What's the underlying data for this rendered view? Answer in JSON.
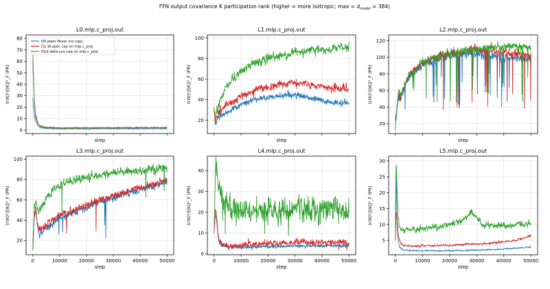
{
  "figure": {
    "suptitle_prefix": "FFN output covariance K participation rank (higher = more isotropic; max = ",
    "suptitle_dmodel": "d",
    "suptitle_sub": "model",
    "suptitle_suffix": " = 384)",
    "xlabel": "step",
    "ylabel": "tr(K)²/||K||²_F (PR)"
  },
  "legend": {
    "placement": "upper-right",
    "entries": [
      "D0 plain Muon (no cap)",
      "D1 W-spec cap on mlp.c_proj",
      "D1d data-cov cap on mlp.c_proj"
    ]
  },
  "colors": {
    "D0": "#1f77b4",
    "D1": "#d62728",
    "D1d": "#2ca02c",
    "grid": "#dddddd",
    "axis": "#000000"
  },
  "chart_data": [
    {
      "type": "line",
      "title": "L0.mlp.c_proj.out",
      "xlabel": "step",
      "ylabel": "tr(K)²/||K||²_F (PR)",
      "xlim": [
        -2500,
        52500
      ],
      "ylim": [
        -3,
        83
      ],
      "xticks": [],
      "yticks": [
        0,
        10,
        20,
        30,
        40,
        50,
        60,
        70,
        80
      ],
      "grid": true,
      "legend": "upper-right",
      "x": [
        0,
        500,
        1000,
        2000,
        3000,
        5000,
        10000,
        15000,
        20000,
        25000,
        30000,
        35000,
        40000,
        45000,
        50000
      ],
      "series": [
        {
          "name": "D0 plain Muon (no cap)",
          "key": "D0",
          "values": [
            28,
            14,
            8,
            3.5,
            2,
            1.5,
            1.2,
            1.2,
            1.2,
            1.3,
            1.3,
            1.3,
            1.3,
            1.3,
            1.4
          ]
        },
        {
          "name": "D1 W-spec cap on mlp.c_proj",
          "key": "D1",
          "values": [
            62,
            28,
            12,
            5,
            3,
            2.2,
            1.8,
            1.8,
            1.8,
            1.9,
            1.9,
            1.9,
            2.0,
            2.0,
            2.0
          ]
        },
        {
          "name": "D1d data-cov cap on mlp.c_proj",
          "key": "D1d",
          "values": [
            68,
            30,
            14,
            5.5,
            3.5,
            2.5,
            2.0,
            2.0,
            2.0,
            2.1,
            2.1,
            2.2,
            2.2,
            2.3,
            2.3
          ]
        }
      ]
    },
    {
      "type": "line",
      "title": "L1.mlp.c_proj.out",
      "xlabel": "step",
      "ylabel": "tr(K)²/||K||²_F (PR)",
      "xlim": [
        -2500,
        52500
      ],
      "ylim": [
        7,
        103
      ],
      "xticks": [],
      "yticks": [
        20,
        40,
        60,
        80,
        100
      ],
      "grid": true,
      "x": [
        0,
        500,
        1000,
        2000,
        3000,
        5000,
        8000,
        10000,
        15000,
        20000,
        25000,
        30000,
        35000,
        40000,
        45000,
        50000
      ],
      "series": [
        {
          "name": "D0 plain Muon (no cap)",
          "key": "D0",
          "values": [
            30,
            14,
            20,
            24,
            25,
            28,
            32,
            35,
            40,
            42,
            44,
            45,
            42,
            39,
            37,
            36
          ]
        },
        {
          "name": "D1 W-spec cap on mlp.c_proj",
          "key": "D1",
          "values": [
            32,
            16,
            24,
            28,
            30,
            35,
            40,
            44,
            49,
            52,
            55,
            57,
            55,
            53,
            51,
            50
          ]
        },
        {
          "name": "D1d data-cov cap on mlp.c_proj",
          "key": "D1d",
          "values": [
            35,
            20,
            30,
            38,
            45,
            55,
            63,
            68,
            75,
            80,
            83,
            86,
            88,
            88,
            90,
            92
          ]
        }
      ]
    },
    {
      "type": "line",
      "title": "L2.mlp.c_proj.out",
      "xlabel": "step",
      "ylabel": "tr(K)²/||K||²_F (PR)",
      "xlim": [
        -2500,
        52500
      ],
      "ylim": [
        8,
        127
      ],
      "xticks": [],
      "yticks": [
        20,
        40,
        60,
        80,
        100,
        120
      ],
      "grid": true,
      "x": [
        0,
        500,
        1000,
        1500,
        2000,
        3000,
        5000,
        8000,
        10000,
        15000,
        20000,
        25000,
        30000,
        35000,
        40000,
        45000,
        50000
      ],
      "series": [
        {
          "name": "D0 plain Muon (no cap)",
          "key": "D0",
          "values": [
            20,
            35,
            50,
            55,
            48,
            60,
            75,
            85,
            90,
            97,
            101,
            104,
            105,
            102,
            100,
            98,
            96
          ]
        },
        {
          "name": "D1 W-spec cap on mlp.c_proj",
          "key": "D1",
          "values": [
            22,
            38,
            52,
            57,
            50,
            62,
            77,
            88,
            93,
            100,
            104,
            107,
            109,
            108,
            106,
            104,
            102
          ]
        },
        {
          "name": "D1d data-cov cap on mlp.c_proj",
          "key": "D1d",
          "values": [
            15,
            40,
            55,
            60,
            52,
            64,
            78,
            88,
            93,
            100,
            105,
            108,
            110,
            112,
            113,
            113,
            112
          ]
        }
      ]
    },
    {
      "type": "line",
      "title": "L3.mlp.c_proj.out",
      "xlabel": "step",
      "ylabel": "tr(K)²/||K||²_F (PR)",
      "xlim": [
        -2500,
        52500
      ],
      "ylim": [
        6,
        103
      ],
      "xticks": [
        0,
        10000,
        20000,
        30000,
        40000,
        50000
      ],
      "yticks": [
        20,
        40,
        60,
        80,
        100
      ],
      "grid": true,
      "x": [
        0,
        500,
        1000,
        2000,
        3000,
        5000,
        8000,
        10000,
        15000,
        20000,
        25000,
        30000,
        35000,
        40000,
        45000,
        50000
      ],
      "series": [
        {
          "name": "D0 plain Muon (no cap)",
          "key": "D0",
          "values": [
            10,
            40,
            50,
            28,
            27,
            32,
            38,
            42,
            48,
            52,
            58,
            62,
            66,
            70,
            74,
            76
          ]
        },
        {
          "name": "D1 W-spec cap on mlp.c_proj",
          "key": "D1",
          "values": [
            12,
            45,
            55,
            32,
            31,
            36,
            42,
            45,
            50,
            55,
            60,
            64,
            68,
            72,
            76,
            79
          ]
        },
        {
          "name": "D1d data-cov cap on mlp.c_proj",
          "key": "D1d",
          "values": [
            12,
            50,
            60,
            48,
            50,
            62,
            70,
            74,
            80,
            82,
            85,
            87,
            88,
            89,
            90,
            91
          ]
        }
      ]
    },
    {
      "type": "line",
      "title": "L4.mlp.c_proj.out",
      "xlabel": "step",
      "ylabel": "tr(K)²/||K||²_F (PR)",
      "xlim": [
        -2500,
        52500
      ],
      "ylim": [
        -0.5,
        47
      ],
      "xticks": [
        0,
        10000,
        20000,
        30000,
        40000,
        50000
      ],
      "yticks": [
        0,
        10,
        20,
        30,
        40
      ],
      "grid": true,
      "x": [
        0,
        500,
        1000,
        1500,
        2000,
        3000,
        5000,
        8000,
        10000,
        15000,
        20000,
        25000,
        30000,
        35000,
        40000,
        45000,
        50000
      ],
      "series": [
        {
          "name": "D0 plain Muon (no cap)",
          "key": "D0",
          "values": [
            10,
            20,
            15,
            8,
            5,
            3.5,
            3,
            3,
            3,
            3.2,
            3.5,
            3.6,
            3.7,
            3.8,
            3.8,
            3.8,
            3.8
          ]
        },
        {
          "name": "D1 W-spec cap on mlp.c_proj",
          "key": "D1",
          "values": [
            12,
            22,
            17,
            9,
            6,
            4.5,
            4,
            4,
            4,
            4.5,
            5,
            5.2,
            5.5,
            5.5,
            5.5,
            5.5,
            5.5
          ]
        },
        {
          "name": "D1d data-cov cap on mlp.c_proj",
          "key": "D1d",
          "values": [
            8,
            44,
            40,
            35,
            32,
            28,
            24,
            22,
            21,
            21,
            21,
            21,
            22,
            21,
            21,
            21,
            21
          ]
        }
      ]
    },
    {
      "type": "line",
      "title": "L5.mlp.c_proj.out",
      "xlabel": "step",
      "ylabel": "tr(K)²/||K||²_F (PR)",
      "xlim": [
        -2500,
        52500
      ],
      "ylim": [
        0.5,
        31.5
      ],
      "xticks": [
        0,
        10000,
        20000,
        30000,
        40000,
        50000
      ],
      "yticks": [
        5,
        10,
        15,
        20,
        25,
        30
      ],
      "grid": true,
      "x": [
        0,
        300,
        600,
        1000,
        1500,
        2000,
        3000,
        5000,
        8000,
        10000,
        15000,
        20000,
        25000,
        27000,
        28000,
        30000,
        32000,
        35000,
        40000,
        45000,
        50000
      ],
      "series": [
        {
          "name": "D0 plain Muon (no cap)",
          "key": "D0",
          "values": [
            12,
            28,
            10,
            5,
            3,
            2.5,
            2,
            1.8,
            1.8,
            1.8,
            1.8,
            1.8,
            1.8,
            1.9,
            1.9,
            1.9,
            2.0,
            2.1,
            2.3,
            2.6,
            3.0
          ]
        },
        {
          "name": "D1 W-spec cap on mlp.c_proj",
          "key": "D1",
          "values": [
            5,
            14,
            12,
            7,
            5,
            4,
            3.5,
            3.2,
            3.2,
            3.3,
            3.4,
            3.5,
            3.7,
            3.8,
            3.9,
            3.9,
            4.0,
            4.2,
            4.5,
            5.2,
            6.5
          ]
        },
        {
          "name": "D1d data-cov cap on mlp.c_proj",
          "key": "D1d",
          "values": [
            6,
            30,
            22,
            12,
            9,
            8.5,
            8.5,
            8.5,
            8.6,
            8.8,
            9.2,
            10,
            11.5,
            13,
            14,
            12,
            10,
            9.8,
            9.8,
            10,
            10
          ]
        }
      ]
    }
  ]
}
